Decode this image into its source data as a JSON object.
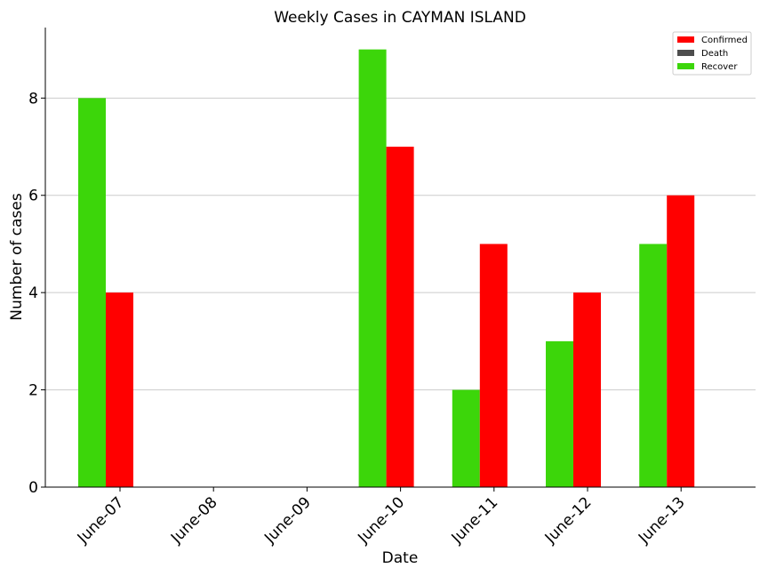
{
  "chart_data": {
    "type": "bar",
    "title": "Weekly Cases in CAYMAN ISLAND",
    "xlabel": "Date",
    "ylabel": "Number of cases",
    "categories": [
      "June-07",
      "June-08",
      "June-09",
      "June-10",
      "June-11",
      "June-12",
      "June-13"
    ],
    "series": [
      {
        "name": "Recover",
        "color": "#3cd60a",
        "values": [
          8,
          0,
          0,
          9,
          2,
          3,
          5
        ]
      },
      {
        "name": "Confirmed",
        "color": "#ff0000",
        "values": [
          4,
          0,
          0,
          7,
          5,
          4,
          6
        ]
      },
      {
        "name": "Death",
        "color": "#4d4d4d",
        "values": [
          0,
          0,
          0,
          0,
          0,
          0,
          0
        ]
      }
    ],
    "legend": [
      {
        "name": "Confirmed",
        "color": "#ff0000"
      },
      {
        "name": "Death",
        "color": "#4d4d4d"
      },
      {
        "name": "Recover",
        "color": "#3cd60a"
      }
    ],
    "legend_position": "top-right",
    "ylim": [
      0,
      9.45
    ],
    "yticks": [
      0,
      2,
      4,
      6,
      8
    ],
    "grid": "horizontal"
  }
}
